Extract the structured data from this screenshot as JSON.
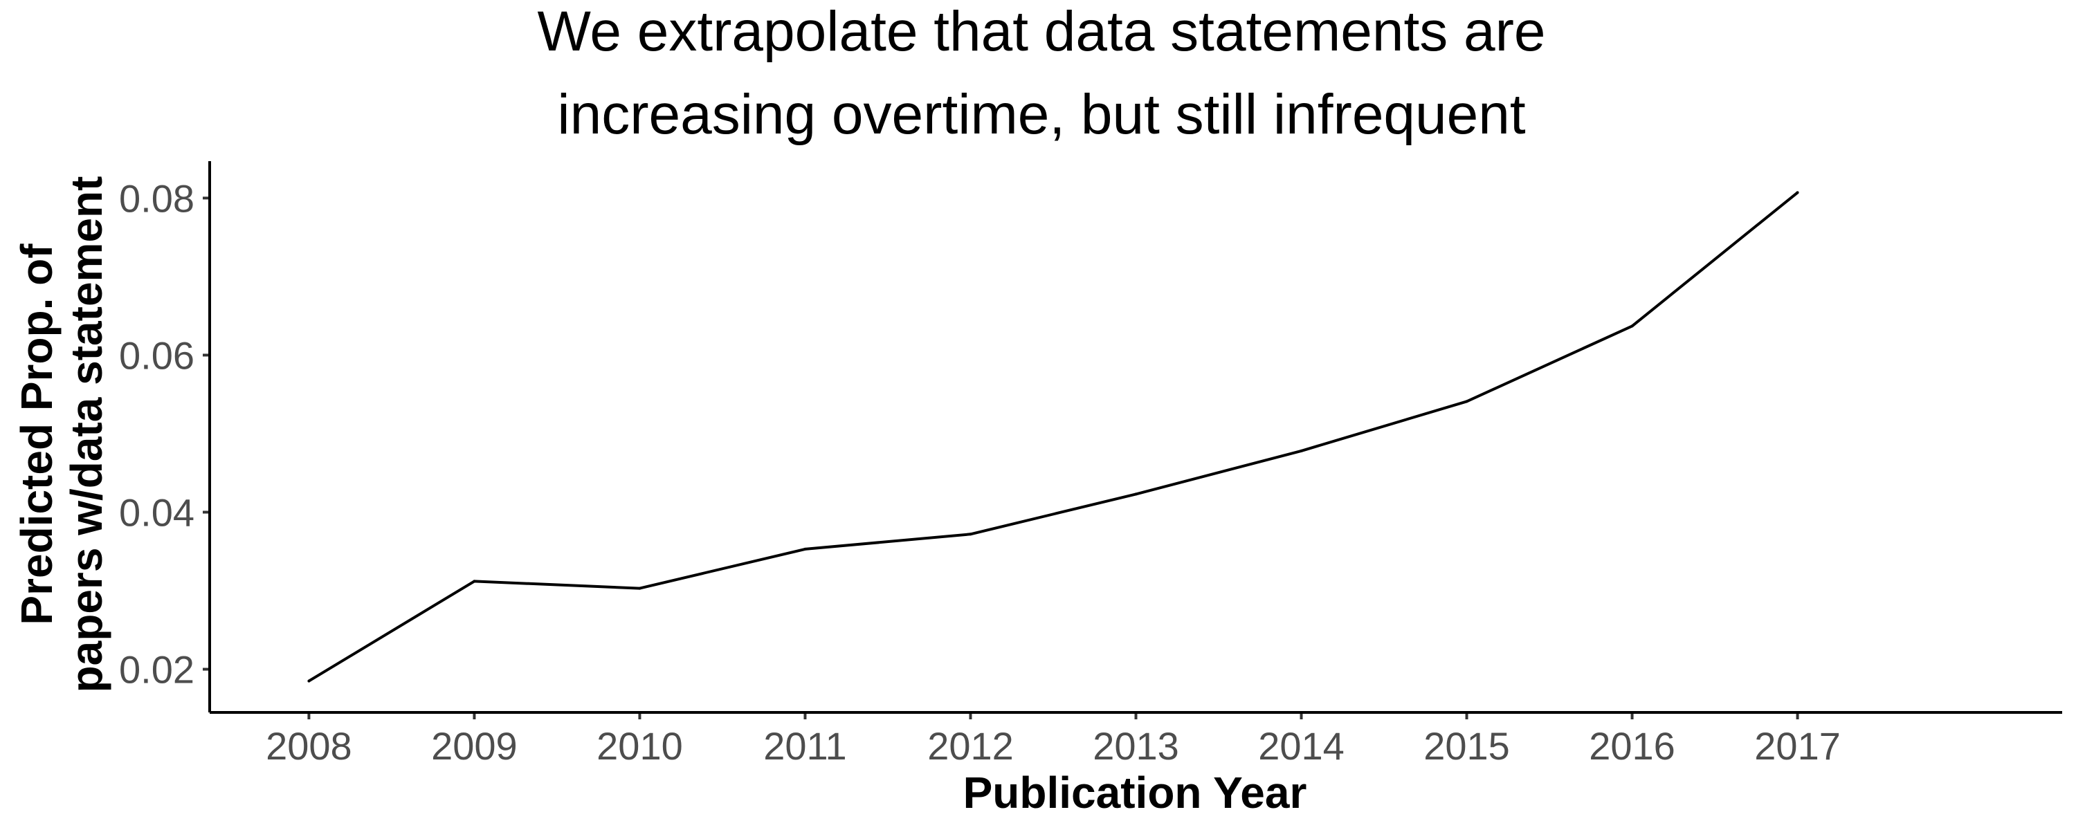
{
  "chart_data": {
    "type": "line",
    "title_lines": [
      "We extrapolate that data statements are",
      "increasing overtime, but still infrequent"
    ],
    "xlabel": "Publication Year",
    "ylabel_lines": [
      "Predicted Prop. of",
      "papers w/data statement"
    ],
    "x": [
      2008,
      2009,
      2010,
      2011,
      2012,
      2013,
      2014,
      2015,
      2016,
      2017
    ],
    "y": [
      0.0185,
      0.0312,
      0.0303,
      0.0353,
      0.0372,
      0.0423,
      0.0478,
      0.0541,
      0.0637,
      0.0807
    ],
    "x_ticks": [
      "2008",
      "2009",
      "2010",
      "2011",
      "2012",
      "2013",
      "2014",
      "2015",
      "2016",
      "2017"
    ],
    "y_ticks": [
      {
        "value": 0.02,
        "label": "0.02"
      },
      {
        "value": 0.04,
        "label": "0.04"
      },
      {
        "value": 0.06,
        "label": "0.06"
      },
      {
        "value": 0.08,
        "label": "0.08"
      }
    ],
    "xlim": [
      2007.4,
      2018.6
    ],
    "ylim": [
      0.0145,
      0.0847
    ],
    "grid": false,
    "legend": "none",
    "line_color": "#000000"
  }
}
